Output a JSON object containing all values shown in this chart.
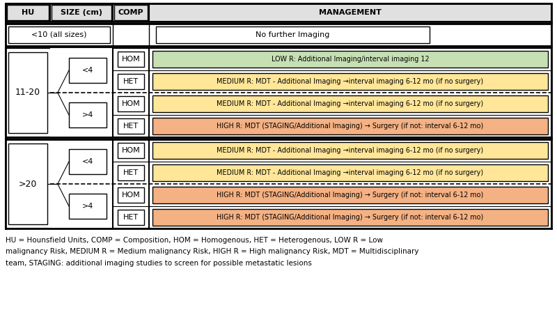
{
  "footnote": "HU = Hounsfield Units, COMP = Composition, HOM = Homogenous, HET = Heterogenous, LOW R = Low\nmalignancy Risk, MEDIUM R = Medium malignancy Risk, HIGH R = High malignancy Risk, MDT = Multidisciplinary\nteam, STAGING: additional imaging studies to screen for possible metastatic lesions",
  "colors": {
    "low": "#c6e0b4",
    "medium": "#ffe699",
    "high": "#f4b183",
    "white": "#ffffff",
    "header_bg": "#e0e0e0",
    "border": "#000000"
  },
  "group1": {
    "hu": "11-20",
    "sub_groups": [
      {
        "size": "<4",
        "items": [
          {
            "comp": "HOM",
            "management": "LOW R: Additional Imaging/interval imaging 12",
            "color": "low"
          },
          {
            "comp": "HET",
            "management": "MEDIUM R: MDT - Additional Imaging →interval imaging 6-12 mo (if no surgery)",
            "color": "medium"
          }
        ]
      },
      {
        "size": ">4",
        "items": [
          {
            "comp": "HOM",
            "management": "MEDIUM R: MDT - Additional Imaging →interval imaging 6-12 mo (if no surgery)",
            "color": "medium"
          },
          {
            "comp": "HET",
            "management": "HIGH R: MDT (STAGING/Additional Imaging) → Surgery (if not: interval 6-12 mo)",
            "color": "high"
          }
        ]
      }
    ]
  },
  "group2": {
    "hu": ">20",
    "sub_groups": [
      {
        "size": "<4",
        "items": [
          {
            "comp": "HOM",
            "management": "MEDIUM R: MDT - Additional Imaging →interval imaging 6-12 mo (if no surgery)",
            "color": "medium"
          },
          {
            "comp": "HET",
            "management": "MEDIUM R: MDT - Additional Imaging →interval imaging 6-12 mo (if no surgery)",
            "color": "medium"
          }
        ]
      },
      {
        "size": ">4",
        "items": [
          {
            "comp": "HOM",
            "management": "HIGH R: MDT (STAGING/Additional Imaging) → Surgery (if not: interval 6-12 mo)",
            "color": "high"
          },
          {
            "comp": "HET",
            "management": "HIGH R: MDT (STAGING/Additional Imaging) → Surgery (if not: interval 6-12 mo)",
            "color": "high"
          }
        ]
      }
    ]
  }
}
